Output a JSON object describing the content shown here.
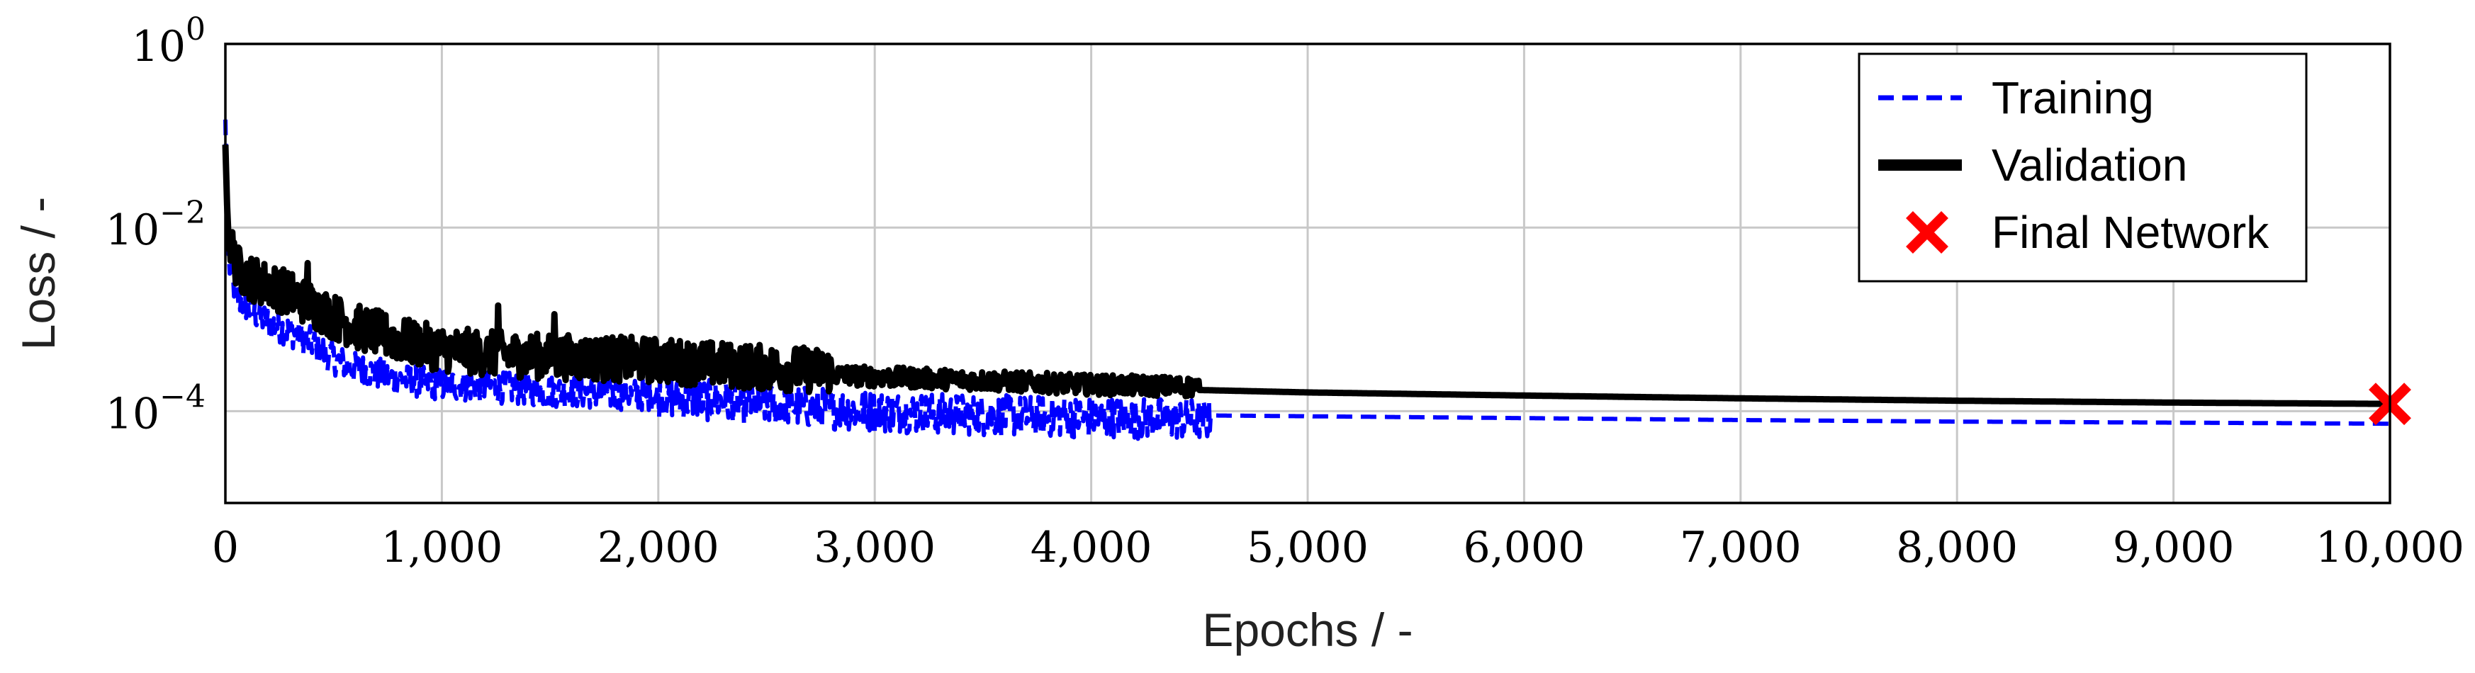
{
  "chart_data": {
    "type": "line",
    "xlabel": "Epochs / -",
    "ylabel": "Loss / -",
    "x_scale": "linear",
    "y_scale": "log",
    "xlim": [
      0,
      10000
    ],
    "ylim": [
      1e-05,
      1
    ],
    "grid": true,
    "legend_position": "top-right",
    "x_ticks": [
      "0",
      "1,000",
      "2,000",
      "3,000",
      "4,000",
      "5,000",
      "6,000",
      "7,000",
      "8,000",
      "9,000",
      "10,000"
    ],
    "x_tick_values": [
      0,
      1000,
      2000,
      3000,
      4000,
      5000,
      6000,
      7000,
      8000,
      9000,
      10000
    ],
    "y_ticks": [
      {
        "value": 1,
        "base": "10",
        "exp": "0"
      },
      {
        "value": 0.01,
        "base": "10",
        "exp": "−2"
      },
      {
        "value": 0.0001,
        "base": "10",
        "exp": "−4"
      }
    ],
    "series": [
      {
        "name": "Training",
        "color": "#0000ff",
        "style": "dashed",
        "x": [
          0,
          10,
          20,
          40,
          60,
          100,
          150,
          200,
          300,
          400,
          500,
          600,
          700,
          800,
          1000,
          1200,
          1500,
          2000,
          2500,
          3000,
          3500,
          4000,
          4500,
          5000,
          6000,
          7000,
          8000,
          9000,
          10000
        ],
        "y": [
          0.15,
          0.006,
          0.004,
          0.0025,
          0.0018,
          0.0015,
          0.0012,
          0.001,
          0.0008,
          0.0006,
          0.0004,
          0.00032,
          0.00028,
          0.00024,
          0.00021,
          0.0002,
          0.00018,
          0.00016,
          0.00013,
          0.00011,
          0.0001,
          9.5e-05,
          9e-05,
          8.8e-05,
          8.4e-05,
          8e-05,
          7.7e-05,
          7.5e-05,
          7.3e-05
        ],
        "noise_until": 4550
      },
      {
        "name": "Validation",
        "color": "#000000",
        "style": "solid",
        "x": [
          0,
          10,
          20,
          40,
          60,
          100,
          150,
          200,
          300,
          400,
          500,
          600,
          700,
          800,
          1000,
          1200,
          1500,
          2000,
          2500,
          3000,
          3500,
          4000,
          4500,
          5000,
          6000,
          7000,
          8000,
          9000,
          10000
        ],
        "y": [
          0.08,
          0.012,
          0.006,
          0.004,
          0.003,
          0.0025,
          0.0022,
          0.002,
          0.0016,
          0.0012,
          0.0009,
          0.0007,
          0.0006,
          0.0005,
          0.0004,
          0.00036,
          0.00033,
          0.0003,
          0.00025,
          0.00022,
          0.0002,
          0.00018,
          0.00017,
          0.00016,
          0.000148,
          0.000138,
          0.00013,
          0.000124,
          0.00012
        ],
        "noise_until": 4500
      }
    ],
    "markers": [
      {
        "name": "Final Network",
        "x": 10000,
        "y": 0.00012,
        "symbol": "x",
        "color": "#ff0000"
      }
    ]
  }
}
